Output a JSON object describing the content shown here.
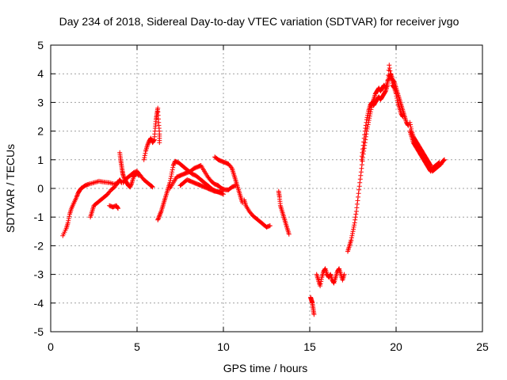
{
  "chart_data": {
    "type": "scatter",
    "title": "Day 234 of 2018, Sidereal Day-to-day VTEC variation (SDTVAR) for receiver jvgo",
    "xlabel": "GPS time / hours",
    "ylabel": "SDTVAR / TECUs",
    "xlim": [
      0,
      25
    ],
    "ylim": [
      -5,
      5
    ],
    "xticks": [
      0,
      5,
      10,
      15,
      20,
      25
    ],
    "yticks": [
      -5,
      -4,
      -3,
      -2,
      -1,
      0,
      1,
      2,
      3,
      4,
      5
    ],
    "grid": true,
    "legend": "none",
    "marker": "+",
    "color": "#ff0000",
    "segments": [
      {
        "name": "early-rise",
        "points": [
          [
            0.7,
            -1.65
          ],
          [
            0.9,
            -1.4
          ],
          [
            1.0,
            -1.2
          ],
          [
            1.1,
            -0.9
          ],
          [
            1.2,
            -0.7
          ],
          [
            1.35,
            -0.5
          ],
          [
            1.5,
            -0.3
          ],
          [
            1.6,
            -0.15
          ],
          [
            1.7,
            -0.05
          ],
          [
            1.8,
            0.02
          ],
          [
            2.0,
            0.1
          ],
          [
            2.2,
            0.15
          ],
          [
            2.5,
            0.2
          ],
          [
            2.8,
            0.25
          ],
          [
            3.1,
            0.22
          ],
          [
            3.4,
            0.2
          ],
          [
            3.7,
            0.15
          ],
          [
            3.9,
            0.2
          ]
        ]
      },
      {
        "name": "second-track",
        "points": [
          [
            2.3,
            -1.0
          ],
          [
            2.4,
            -0.8
          ],
          [
            2.5,
            -0.6
          ],
          [
            2.7,
            -0.5
          ],
          [
            2.9,
            -0.4
          ],
          [
            3.1,
            -0.3
          ],
          [
            3.3,
            -0.2
          ],
          [
            3.5,
            -0.05
          ],
          [
            3.7,
            0.05
          ],
          [
            3.9,
            0.2
          ],
          [
            4.0,
            0.3
          ],
          [
            4.1,
            0.2
          ]
        ]
      },
      {
        "name": "dip-at-4",
        "points": [
          [
            3.4,
            -0.6
          ],
          [
            3.6,
            -0.65
          ],
          [
            3.8,
            -0.6
          ],
          [
            3.9,
            -0.7
          ]
        ]
      },
      {
        "name": "spike-at-4",
        "points": [
          [
            4.0,
            1.25
          ],
          [
            4.05,
            1.0
          ],
          [
            4.1,
            0.8
          ],
          [
            4.15,
            0.6
          ],
          [
            4.2,
            0.45
          ],
          [
            4.3,
            0.3
          ],
          [
            4.4,
            0.2
          ],
          [
            4.5,
            0.1
          ],
          [
            4.6,
            0.05
          ],
          [
            4.7,
            0.2
          ],
          [
            4.8,
            0.4
          ],
          [
            4.9,
            0.5
          ],
          [
            5.0,
            0.55
          ],
          [
            5.1,
            0.45
          ]
        ]
      },
      {
        "name": "track-5",
        "points": [
          [
            4.2,
            0.2
          ],
          [
            4.4,
            0.35
          ],
          [
            4.6,
            0.45
          ],
          [
            4.8,
            0.55
          ],
          [
            5.0,
            0.6
          ],
          [
            5.2,
            0.45
          ],
          [
            5.4,
            0.3
          ],
          [
            5.6,
            0.2
          ],
          [
            5.8,
            0.1
          ],
          [
            5.9,
            0.05
          ]
        ]
      },
      {
        "name": "rise-at-5",
        "points": [
          [
            5.4,
            1.0
          ],
          [
            5.5,
            1.3
          ],
          [
            5.6,
            1.5
          ],
          [
            5.7,
            1.65
          ],
          [
            5.8,
            1.75
          ],
          [
            5.9,
            1.6
          ],
          [
            6.0,
            1.7
          ],
          [
            6.05,
            2.1
          ],
          [
            6.1,
            2.4
          ],
          [
            6.15,
            2.6
          ],
          [
            6.2,
            2.8
          ],
          [
            6.25,
            2.3
          ],
          [
            6.3,
            1.9
          ],
          [
            6.3,
            1.6
          ]
        ]
      },
      {
        "name": "drop-at-6",
        "points": [
          [
            6.2,
            -1.1
          ],
          [
            6.3,
            -0.95
          ],
          [
            6.4,
            -0.8
          ],
          [
            6.5,
            -0.6
          ],
          [
            6.6,
            -0.4
          ],
          [
            6.7,
            -0.2
          ],
          [
            6.8,
            0.0
          ],
          [
            6.9,
            0.2
          ],
          [
            7.0,
            0.5
          ],
          [
            7.1,
            0.8
          ],
          [
            7.2,
            0.95
          ],
          [
            7.4,
            0.9
          ],
          [
            7.6,
            0.8
          ],
          [
            7.8,
            0.7
          ],
          [
            8.0,
            0.6
          ],
          [
            8.2,
            0.5
          ],
          [
            8.4,
            0.45
          ],
          [
            8.6,
            0.35
          ],
          [
            8.8,
            0.25
          ],
          [
            9.0,
            0.15
          ],
          [
            9.2,
            0.05
          ],
          [
            9.4,
            -0.05
          ],
          [
            9.6,
            -0.1
          ],
          [
            9.8,
            -0.15
          ],
          [
            10.0,
            -0.2
          ]
        ]
      },
      {
        "name": "track-7b",
        "points": [
          [
            6.9,
            0.0
          ],
          [
            7.1,
            0.2
          ],
          [
            7.3,
            0.4
          ],
          [
            7.5,
            0.45
          ],
          [
            7.7,
            0.5
          ],
          [
            7.9,
            0.55
          ],
          [
            8.1,
            0.6
          ],
          [
            8.3,
            0.7
          ],
          [
            8.5,
            0.75
          ],
          [
            8.7,
            0.8
          ],
          [
            8.9,
            0.6
          ],
          [
            9.1,
            0.4
          ],
          [
            9.3,
            0.25
          ],
          [
            9.5,
            0.15
          ],
          [
            9.7,
            0.1
          ],
          [
            9.9,
            0.0
          ],
          [
            10.1,
            -0.05
          ],
          [
            10.3,
            -0.05
          ],
          [
            10.5,
            0.05
          ],
          [
            10.7,
            0.1
          ]
        ]
      },
      {
        "name": "track-7c",
        "points": [
          [
            7.5,
            0.1
          ],
          [
            7.7,
            0.2
          ],
          [
            7.9,
            0.3
          ],
          [
            8.1,
            0.25
          ],
          [
            8.3,
            0.2
          ],
          [
            8.5,
            0.15
          ],
          [
            8.7,
            0.1
          ],
          [
            8.9,
            0.05
          ],
          [
            9.1,
            0.0
          ],
          [
            9.3,
            -0.05
          ],
          [
            9.5,
            -0.1
          ],
          [
            9.7,
            -0.12
          ],
          [
            9.9,
            -0.1
          ]
        ]
      },
      {
        "name": "track-9",
        "points": [
          [
            9.5,
            1.1
          ],
          [
            9.7,
            1.0
          ],
          [
            9.9,
            0.95
          ],
          [
            10.1,
            0.9
          ],
          [
            10.3,
            0.85
          ],
          [
            10.5,
            0.7
          ],
          [
            10.6,
            0.5
          ],
          [
            10.7,
            0.3
          ],
          [
            10.8,
            0.1
          ],
          [
            10.9,
            -0.1
          ],
          [
            11.0,
            -0.3
          ],
          [
            11.1,
            -0.5
          ]
        ]
      },
      {
        "name": "decline-11",
        "points": [
          [
            11.2,
            -0.4
          ],
          [
            11.3,
            -0.6
          ],
          [
            11.5,
            -0.8
          ],
          [
            11.7,
            -0.95
          ],
          [
            11.9,
            -1.05
          ],
          [
            12.1,
            -1.15
          ],
          [
            12.3,
            -1.25
          ],
          [
            12.5,
            -1.35
          ],
          [
            12.7,
            -1.3
          ]
        ]
      },
      {
        "name": "track-13",
        "points": [
          [
            13.2,
            -0.1
          ],
          [
            13.25,
            -0.3
          ],
          [
            13.3,
            -0.6
          ],
          [
            13.4,
            -0.8
          ],
          [
            13.5,
            -1.0
          ],
          [
            13.6,
            -1.2
          ],
          [
            13.7,
            -1.4
          ],
          [
            13.8,
            -1.6
          ]
        ]
      },
      {
        "name": "low-15",
        "points": [
          [
            15.05,
            -3.8
          ],
          [
            15.1,
            -3.9
          ],
          [
            15.15,
            -4.0
          ],
          [
            15.2,
            -4.2
          ],
          [
            15.25,
            -4.4
          ]
        ]
      },
      {
        "name": "low-15b",
        "points": [
          [
            15.4,
            -3.0
          ],
          [
            15.5,
            -3.2
          ],
          [
            15.6,
            -3.4
          ],
          [
            15.7,
            -3.1
          ],
          [
            15.8,
            -2.9
          ],
          [
            15.9,
            -2.8
          ],
          [
            16.0,
            -3.0
          ],
          [
            16.1,
            -3.1
          ],
          [
            16.2,
            -3.0
          ],
          [
            16.3,
            -3.2
          ],
          [
            16.4,
            -3.3
          ],
          [
            16.5,
            -3.1
          ],
          [
            16.6,
            -2.9
          ],
          [
            16.7,
            -2.8
          ],
          [
            16.8,
            -3.0
          ],
          [
            16.9,
            -3.2
          ],
          [
            17.0,
            -3.0
          ]
        ]
      },
      {
        "name": "big-rise",
        "points": [
          [
            17.2,
            -2.2
          ],
          [
            17.3,
            -2.0
          ],
          [
            17.4,
            -1.8
          ],
          [
            17.5,
            -1.5
          ],
          [
            17.6,
            -1.2
          ],
          [
            17.7,
            -0.8
          ],
          [
            17.8,
            -0.3
          ],
          [
            17.9,
            0.2
          ],
          [
            18.0,
            0.7
          ],
          [
            18.1,
            1.2
          ],
          [
            18.2,
            1.6
          ],
          [
            18.3,
            2.0
          ],
          [
            18.4,
            2.3
          ],
          [
            18.5,
            2.6
          ],
          [
            18.6,
            2.9
          ],
          [
            18.7,
            3.1
          ],
          [
            18.8,
            3.3
          ],
          [
            18.9,
            3.4
          ],
          [
            19.0,
            3.5
          ],
          [
            19.1,
            3.4
          ],
          [
            19.2,
            3.5
          ],
          [
            19.3,
            3.6
          ],
          [
            19.4,
            3.5
          ],
          [
            19.5,
            3.7
          ],
          [
            19.6,
            3.9
          ],
          [
            19.7,
            4.0
          ],
          [
            19.8,
            3.8
          ],
          [
            19.9,
            3.7
          ],
          [
            20.0,
            3.5
          ],
          [
            20.1,
            3.3
          ],
          [
            20.2,
            3.1
          ],
          [
            20.3,
            2.9
          ],
          [
            20.4,
            2.7
          ],
          [
            20.5,
            2.5
          ],
          [
            20.6,
            2.3
          ],
          [
            20.7,
            2.2
          ]
        ]
      },
      {
        "name": "rise-track-b",
        "points": [
          [
            18.0,
            1.0
          ],
          [
            18.1,
            1.5
          ],
          [
            18.2,
            2.0
          ],
          [
            18.3,
            2.4
          ],
          [
            18.4,
            2.7
          ],
          [
            18.5,
            2.9
          ],
          [
            18.6,
            3.0
          ],
          [
            18.7,
            2.9
          ],
          [
            18.8,
            3.0
          ],
          [
            18.9,
            3.1
          ],
          [
            19.0,
            3.2
          ],
          [
            19.1,
            3.1
          ],
          [
            19.2,
            3.2
          ],
          [
            19.3,
            3.3
          ],
          [
            19.4,
            3.4
          ],
          [
            19.5,
            3.6
          ],
          [
            19.6,
            4.3
          ],
          [
            19.7,
            3.9
          ],
          [
            19.8,
            3.6
          ],
          [
            19.9,
            3.5
          ],
          [
            20.0,
            3.3
          ],
          [
            20.1,
            3.0
          ],
          [
            20.2,
            2.8
          ],
          [
            20.3,
            2.6
          ],
          [
            20.4,
            2.5
          ]
        ]
      },
      {
        "name": "late-decline",
        "points": [
          [
            20.8,
            2.0
          ],
          [
            20.9,
            1.8
          ],
          [
            21.0,
            1.6
          ],
          [
            21.1,
            1.5
          ],
          [
            21.2,
            1.4
          ],
          [
            21.3,
            1.3
          ],
          [
            21.4,
            1.2
          ],
          [
            21.5,
            1.1
          ],
          [
            21.6,
            1.0
          ],
          [
            21.7,
            0.9
          ],
          [
            21.8,
            0.8
          ],
          [
            21.9,
            0.7
          ],
          [
            22.0,
            0.6
          ],
          [
            22.1,
            0.7
          ],
          [
            22.2,
            0.75
          ],
          [
            22.3,
            0.8
          ],
          [
            22.4,
            0.85
          ],
          [
            22.5,
            0.9
          ]
        ]
      },
      {
        "name": "late-track-b",
        "points": [
          [
            20.8,
            2.3
          ],
          [
            20.9,
            2.0
          ],
          [
            21.0,
            1.8
          ],
          [
            21.1,
            1.7
          ],
          [
            21.2,
            1.6
          ],
          [
            21.3,
            1.5
          ],
          [
            21.4,
            1.4
          ],
          [
            21.5,
            1.3
          ],
          [
            21.6,
            1.2
          ],
          [
            21.7,
            1.1
          ],
          [
            21.8,
            1.0
          ],
          [
            21.9,
            0.9
          ],
          [
            22.0,
            0.8
          ],
          [
            22.1,
            0.6
          ],
          [
            22.2,
            0.65
          ],
          [
            22.3,
            0.7
          ],
          [
            22.4,
            0.75
          ],
          [
            22.5,
            0.8
          ],
          [
            22.6,
            0.85
          ],
          [
            22.7,
            0.95
          ],
          [
            22.8,
            1.0
          ]
        ]
      }
    ]
  }
}
